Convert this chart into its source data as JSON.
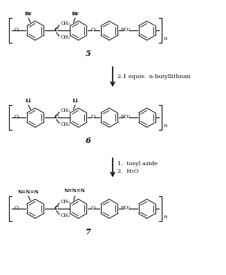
{
  "bg_color": "#ffffff",
  "line_color": "#000000",
  "fig_width": 3.27,
  "fig_height": 3.98,
  "dpi": 100,
  "arrow1_label": "2.1 equiv.  n-butyllithium",
  "arrow2_line1": "1.  tosyl azide",
  "arrow2_line2": "2.  H₂O",
  "compound5_label": "5",
  "compound6_label": "6",
  "compound7_label": "7",
  "lw": 0.8,
  "ring_lw": 0.7
}
